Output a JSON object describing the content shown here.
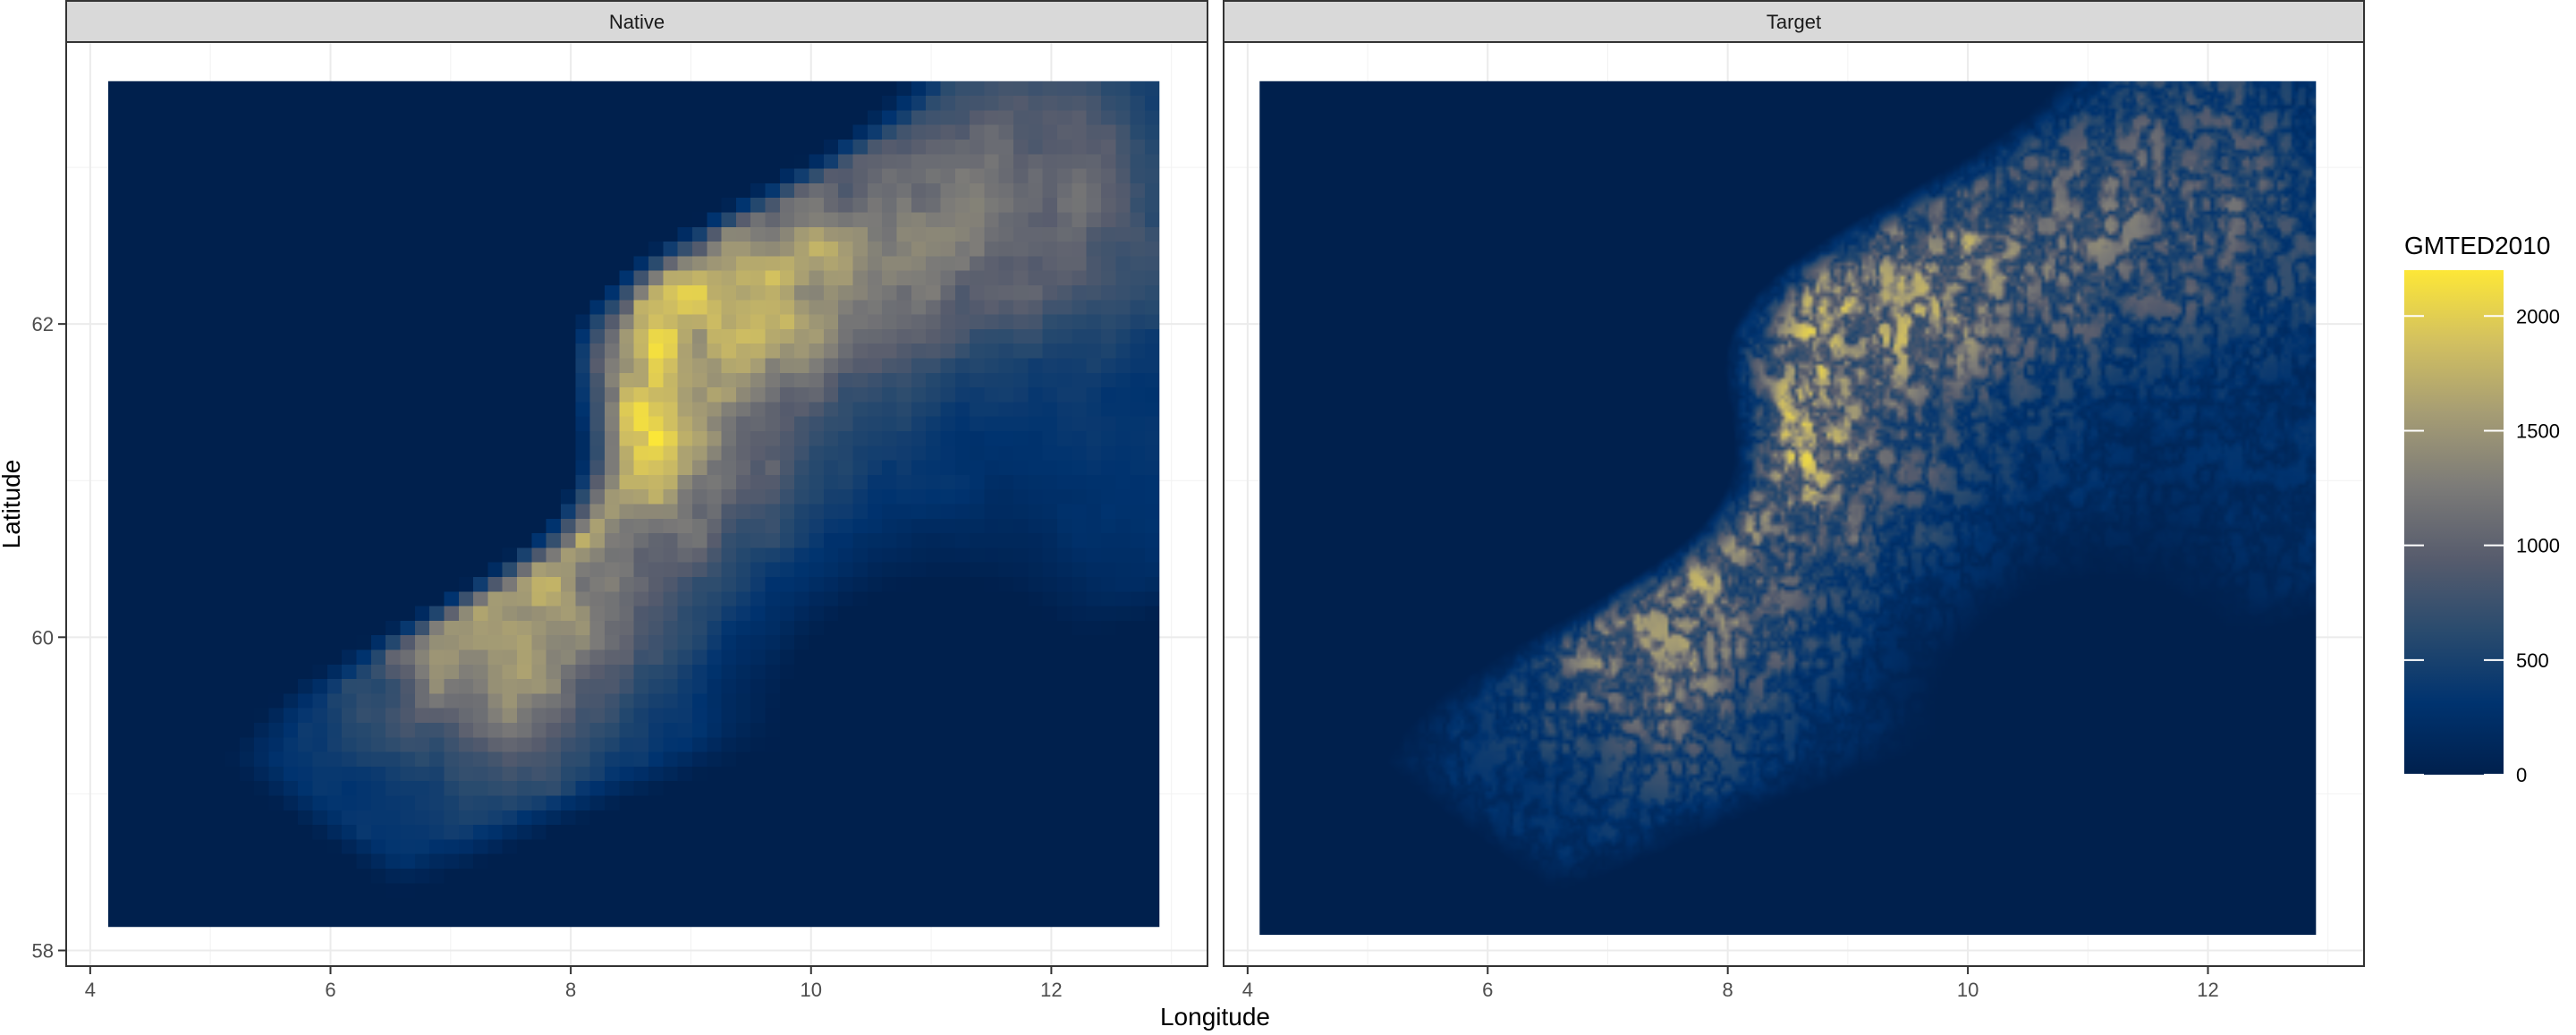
{
  "chart_data": {
    "type": "heatmap",
    "xlabel": "Longitude",
    "ylabel": "Latitude",
    "xlim": [
      3.8,
      13.3
    ],
    "ylim": [
      57.9,
      63.8
    ],
    "x_ticks": [
      4,
      6,
      8,
      10,
      12
    ],
    "y_ticks": [
      58,
      60,
      62
    ],
    "x_tick_labels": [
      "4",
      "6",
      "8",
      "10",
      "12"
    ],
    "y_tick_labels": [
      "58",
      "60",
      "62"
    ],
    "grid": true,
    "legend_position": "right",
    "panels": [
      {
        "name": "Native",
        "extent_lon": [
          4.15,
          12.9
        ],
        "extent_lat": [
          58.15,
          63.55
        ],
        "resolution": "coarse"
      },
      {
        "name": "Target",
        "extent_lon": [
          4.1,
          12.9
        ],
        "extent_lat": [
          58.1,
          63.55
        ],
        "resolution": "fine"
      }
    ],
    "colorbar": {
      "title": "GMTED2010",
      "range": [
        0,
        2200
      ],
      "ticks": [
        0,
        500,
        1000,
        1500,
        2000
      ],
      "tick_labels": [
        "0",
        "500",
        "1000",
        "1500",
        "2000"
      ],
      "colors": [
        "#00204d",
        "#00336f",
        "#2a4b6e",
        "#575c6d",
        "#7c7b78",
        "#a59c74",
        "#d2c060",
        "#fde737"
      ]
    }
  }
}
